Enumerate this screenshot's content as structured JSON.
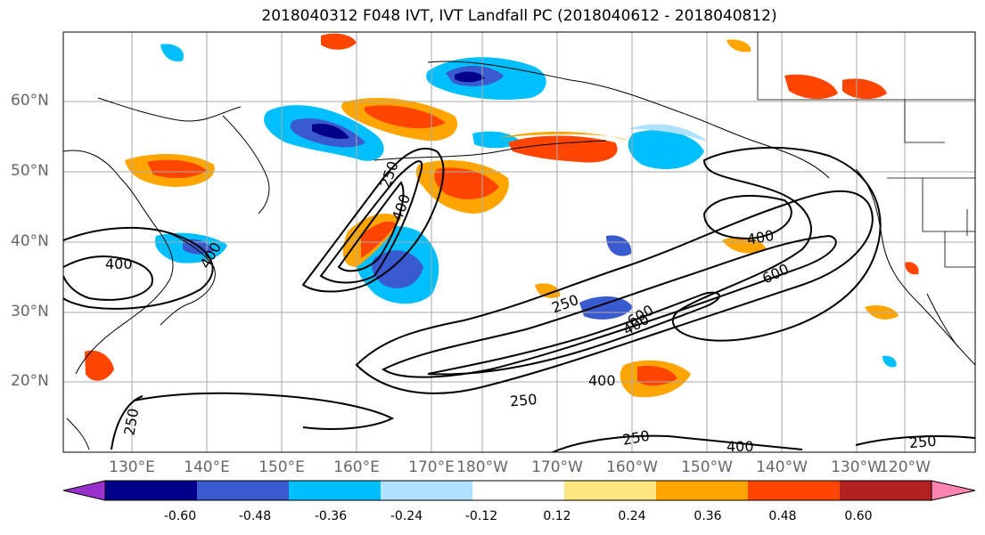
{
  "title": "2018040312 F048 IVT, IVT Landfall PC (2018040612 - 2018040812)",
  "latitude_labels": [
    "60°N",
    "50°N",
    "40°N",
    "30°N",
    "20°N"
  ],
  "longitude_labels": [
    "130°E",
    "140°E",
    "150°E",
    "160°E",
    "170°E",
    "180°W",
    "170°W",
    "160°W",
    "150°W",
    "140°W",
    "130°W",
    "120°W"
  ],
  "colorbar": {
    "ticks": [
      "-0.60",
      "-0.48",
      "-0.36",
      "-0.24",
      "-0.12",
      "0.12",
      "0.24",
      "0.36",
      "0.48",
      "0.60"
    ],
    "colors": [
      "#9932cc",
      "#00008b",
      "#3a5bd0",
      "#00bfff",
      "#b0e2ff",
      "#ffffff",
      "#ffe680",
      "#ffa500",
      "#ff4500",
      "#b22222",
      "#ff85b0"
    ]
  },
  "contour_labels": [
    "250",
    "400",
    "400",
    "250",
    "400",
    "600",
    "400",
    "250",
    "400",
    "250",
    "250",
    "400",
    "250",
    "400",
    "600",
    "250"
  ],
  "colors": {
    "contour": "#000000",
    "grid": "#aaaaaa",
    "coast": "#000000",
    "tick_label": "#666666"
  }
}
